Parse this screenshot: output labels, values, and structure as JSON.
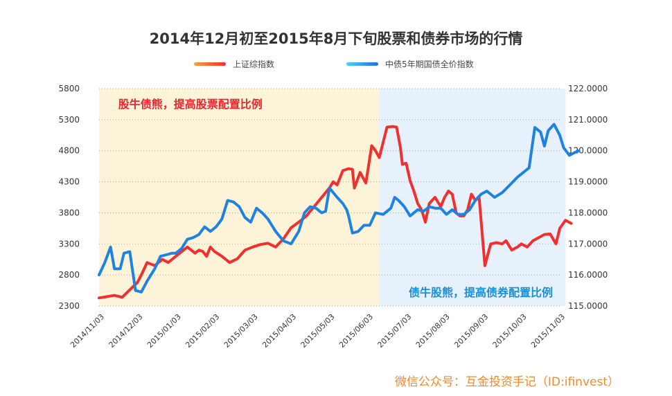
{
  "chart_data": {
    "type": "line",
    "title": "2014年12月初至2015年8月下旬股票和债券市场的行情",
    "legend": [
      "上证综指数",
      "中债5年期国债全价指数"
    ],
    "x_ticks": [
      "2014/11/03",
      "2014/12/03",
      "2015/01/03",
      "2015/02/03",
      "2015/03/03",
      "2015/04/03",
      "2015/05/03",
      "2015/06/03",
      "2015/07/03",
      "2015/08/03",
      "2015/09/03",
      "2015/10/03",
      "2015/11/03"
    ],
    "y_left": {
      "min": 2300,
      "max": 5800,
      "ticks": [
        "2300",
        "2800",
        "3300",
        "3800",
        "4300",
        "4800",
        "5300",
        "5800"
      ]
    },
    "y_right": {
      "min": 115,
      "max": 122,
      "ticks": [
        "115.0000",
        "116.0000",
        "117.0000",
        "118.0000",
        "119.0000",
        "120.0000",
        "121.0000",
        "122.0000"
      ]
    },
    "grid": true,
    "legend_position": "top",
    "regions": [
      {
        "label": "股牛债熊，提高股票配置比例",
        "from": 0,
        "to": 7.3,
        "color": "#fdf3d8",
        "text_color": "#e8262e"
      },
      {
        "label": "债牛股熊，提高债券配置比例",
        "from": 7.3,
        "to": 12.15,
        "color": "#e6f1fb",
        "text_color": "#1a8fd6"
      }
    ],
    "series": [
      {
        "name": "上证综指数",
        "axis": "left",
        "color": "#f02f2f",
        "points": [
          [
            0,
            2430
          ],
          [
            0.2,
            2450
          ],
          [
            0.4,
            2470
          ],
          [
            0.6,
            2440
          ],
          [
            0.8,
            2560
          ],
          [
            1,
            2680
          ],
          [
            1.1,
            2800
          ],
          [
            1.25,
            3000
          ],
          [
            1.45,
            2950
          ],
          [
            1.65,
            3050
          ],
          [
            1.8,
            3000
          ],
          [
            2,
            3100
          ],
          [
            2.2,
            3200
          ],
          [
            2.3,
            3250
          ],
          [
            2.5,
            3150
          ],
          [
            2.6,
            3200
          ],
          [
            2.7,
            3180
          ],
          [
            2.8,
            3100
          ],
          [
            2.9,
            3250
          ],
          [
            3,
            3180
          ],
          [
            3.2,
            3100
          ],
          [
            3.4,
            3000
          ],
          [
            3.6,
            3060
          ],
          [
            3.8,
            3200
          ],
          [
            4,
            3250
          ],
          [
            4.2,
            3290
          ],
          [
            4.4,
            3310
          ],
          [
            4.6,
            3250
          ],
          [
            4.8,
            3380
          ],
          [
            5,
            3560
          ],
          [
            5.2,
            3650
          ],
          [
            5.4,
            3750
          ],
          [
            5.6,
            3900
          ],
          [
            5.8,
            4050
          ],
          [
            6,
            4200
          ],
          [
            6.1,
            4300
          ],
          [
            6.2,
            4250
          ],
          [
            6.35,
            4480
          ],
          [
            6.5,
            4510
          ],
          [
            6.6,
            4500
          ],
          [
            6.65,
            4200
          ],
          [
            6.8,
            4450
          ],
          [
            6.95,
            4280
          ],
          [
            7.1,
            4880
          ],
          [
            7.2,
            4800
          ],
          [
            7.3,
            4690
          ],
          [
            7.5,
            5180
          ],
          [
            7.65,
            5190
          ],
          [
            7.75,
            5180
          ],
          [
            7.85,
            4850
          ],
          [
            7.9,
            4580
          ],
          [
            8,
            4600
          ],
          [
            8.1,
            4320
          ],
          [
            8.2,
            4150
          ],
          [
            8.3,
            3950
          ],
          [
            8.4,
            3850
          ],
          [
            8.5,
            3650
          ],
          [
            8.6,
            3950
          ],
          [
            8.75,
            4050
          ],
          [
            8.9,
            3900
          ],
          [
            9,
            4050
          ],
          [
            9.1,
            4150
          ],
          [
            9.2,
            4100
          ],
          [
            9.3,
            3800
          ],
          [
            9.4,
            3750
          ],
          [
            9.5,
            3750
          ],
          [
            9.6,
            3850
          ],
          [
            9.7,
            4100
          ],
          [
            9.8,
            4000
          ],
          [
            9.9,
            4050
          ],
          [
            10.05,
            2950
          ],
          [
            10.2,
            3300
          ],
          [
            10.35,
            3320
          ],
          [
            10.5,
            3300
          ],
          [
            10.6,
            3350
          ],
          [
            10.75,
            3200
          ],
          [
            10.9,
            3250
          ],
          [
            11,
            3300
          ],
          [
            11.15,
            3250
          ],
          [
            11.3,
            3350
          ],
          [
            11.45,
            3400
          ],
          [
            11.6,
            3450
          ],
          [
            11.75,
            3460
          ],
          [
            11.9,
            3300
          ],
          [
            12,
            3550
          ],
          [
            12.15,
            3680
          ],
          [
            12.3,
            3630
          ]
        ]
      },
      {
        "name": "中债5年期国债全价指数",
        "axis": "right",
        "color": "#1e82e0",
        "points": [
          [
            0,
            116
          ],
          [
            0.15,
            116.4
          ],
          [
            0.3,
            116.9
          ],
          [
            0.4,
            116.2
          ],
          [
            0.55,
            116.2
          ],
          [
            0.65,
            116.7
          ],
          [
            0.8,
            116.75
          ],
          [
            0.95,
            115.5
          ],
          [
            1.1,
            115.45
          ],
          [
            1.25,
            115.8
          ],
          [
            1.45,
            116.2
          ],
          [
            1.6,
            116.6
          ],
          [
            1.75,
            116.65
          ],
          [
            1.9,
            116.7
          ],
          [
            2,
            116.7
          ],
          [
            2.15,
            116.85
          ],
          [
            2.3,
            117.15
          ],
          [
            2.45,
            117.2
          ],
          [
            2.6,
            117.3
          ],
          [
            2.75,
            117.55
          ],
          [
            2.9,
            117.4
          ],
          [
            3.05,
            117.55
          ],
          [
            3.2,
            117.8
          ],
          [
            3.35,
            118.4
          ],
          [
            3.5,
            118.35
          ],
          [
            3.65,
            118.2
          ],
          [
            3.8,
            117.85
          ],
          [
            3.95,
            117.7
          ],
          [
            4.1,
            118.15
          ],
          [
            4.25,
            118.0
          ],
          [
            4.4,
            117.8
          ],
          [
            4.6,
            117.4
          ],
          [
            4.8,
            117.1
          ],
          [
            5,
            117.0
          ],
          [
            5.2,
            117.4
          ],
          [
            5.35,
            118.0
          ],
          [
            5.5,
            118.2
          ],
          [
            5.65,
            118.15
          ],
          [
            5.8,
            118.0
          ],
          [
            5.9,
            118.05
          ],
          [
            6,
            118.8
          ],
          [
            6.2,
            118.5
          ],
          [
            6.35,
            118.3
          ],
          [
            6.45,
            118.1
          ],
          [
            6.5,
            117.9
          ],
          [
            6.6,
            117.35
          ],
          [
            6.75,
            117.4
          ],
          [
            6.9,
            117.6
          ],
          [
            7.05,
            117.6
          ],
          [
            7.2,
            118.0
          ],
          [
            7.4,
            117.95
          ],
          [
            7.6,
            118.15
          ],
          [
            7.7,
            118.5
          ],
          [
            7.8,
            118.4
          ],
          [
            7.95,
            118.2
          ],
          [
            8.1,
            117.9
          ],
          [
            8.3,
            118.1
          ],
          [
            8.45,
            118.05
          ],
          [
            8.6,
            118.2
          ],
          [
            8.75,
            118.15
          ],
          [
            8.9,
            118.15
          ],
          [
            9.05,
            117.95
          ],
          [
            9.2,
            118.1
          ],
          [
            9.35,
            117.95
          ],
          [
            9.5,
            117.95
          ],
          [
            9.65,
            118.1
          ],
          [
            9.8,
            118.4
          ],
          [
            9.95,
            118.6
          ],
          [
            10.1,
            118.7
          ],
          [
            10.3,
            118.5
          ],
          [
            10.5,
            118.65
          ],
          [
            10.7,
            118.9
          ],
          [
            10.9,
            119.15
          ],
          [
            11.05,
            119.3
          ],
          [
            11.2,
            119.45
          ],
          [
            11.35,
            120.75
          ],
          [
            11.5,
            120.6
          ],
          [
            11.6,
            120.15
          ],
          [
            11.7,
            120.65
          ],
          [
            11.85,
            120.85
          ],
          [
            12,
            120.5
          ],
          [
            12.1,
            120.1
          ],
          [
            12.25,
            119.85
          ],
          [
            12.4,
            119.95
          ],
          [
            12.5,
            120.0
          ]
        ]
      }
    ],
    "source": "微信公众号：互金投资手记（ID:ifinvest）"
  }
}
